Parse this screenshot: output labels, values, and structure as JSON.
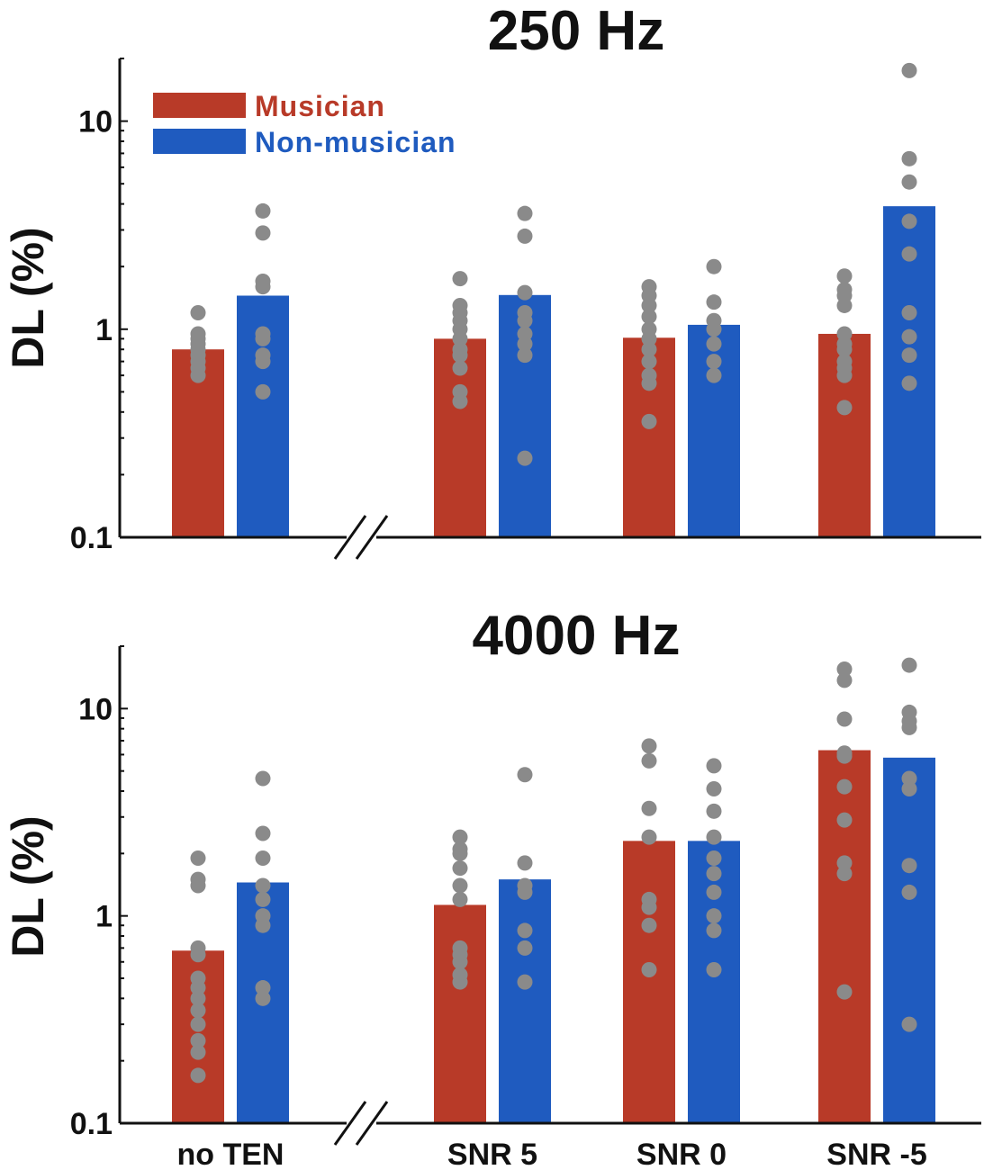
{
  "chart_data": [
    {
      "type": "bar",
      "title": "250 Hz",
      "ylabel": "DL (%)",
      "xlabel": "",
      "yscale": "log",
      "ylim": [
        0.1,
        20
      ],
      "yticks": [
        0.1,
        1,
        10
      ],
      "ytick_labels": [
        "0.1",
        "1",
        "10"
      ],
      "categories": [
        "no TEN",
        "SNR 5",
        "SNR 0",
        "SNR -5"
      ],
      "show_category_labels": false,
      "axis_break_after": "no TEN",
      "legend": {
        "placement": "top-left",
        "entries": [
          "Musician",
          "Non-musician"
        ]
      },
      "series": [
        {
          "name": "Musician",
          "color": "#b83a28",
          "values": [
            0.8,
            0.9,
            0.91,
            0.95
          ],
          "points": [
            [
              0.6,
              0.65,
              0.7,
              0.75,
              0.8,
              0.85,
              0.9,
              0.95,
              1.2
            ],
            [
              0.45,
              0.5,
              0.65,
              0.75,
              0.8,
              0.9,
              1.0,
              1.1,
              1.2,
              1.3,
              1.75
            ],
            [
              0.36,
              0.55,
              0.6,
              0.7,
              0.8,
              0.9,
              1.0,
              1.15,
              1.3,
              1.45,
              1.6
            ],
            [
              0.42,
              0.6,
              0.65,
              0.7,
              0.8,
              0.85,
              0.95,
              1.3,
              1.45,
              1.55,
              1.8
            ]
          ]
        },
        {
          "name": "Non-musician",
          "color": "#1f5bbf",
          "values": [
            1.45,
            1.46,
            1.05,
            3.9
          ],
          "points": [
            [
              0.5,
              0.7,
              0.75,
              0.9,
              0.95,
              1.6,
              1.7,
              2.9,
              3.7
            ],
            [
              0.24,
              0.75,
              0.85,
              0.95,
              1.1,
              1.2,
              1.5,
              2.8,
              3.6
            ],
            [
              0.6,
              0.7,
              0.85,
              1.0,
              1.1,
              1.35,
              2.0
            ],
            [
              0.55,
              0.75,
              0.92,
              1.2,
              2.3,
              3.3,
              5.1,
              6.6,
              17.5
            ]
          ]
        }
      ]
    },
    {
      "type": "bar",
      "title": "4000 Hz",
      "ylabel": "DL (%)",
      "xlabel": "",
      "yscale": "log",
      "ylim": [
        0.1,
        20
      ],
      "yticks": [
        0.1,
        1,
        10
      ],
      "ytick_labels": [
        "0.1",
        "1",
        "10"
      ],
      "categories": [
        "no TEN",
        "SNR 5",
        "SNR 0",
        "SNR -5"
      ],
      "show_category_labels": true,
      "axis_break_after": "no TEN",
      "series": [
        {
          "name": "Musician",
          "color": "#b83a28",
          "values": [
            0.68,
            1.13,
            2.3,
            6.3
          ],
          "points": [
            [
              0.17,
              0.22,
              0.25,
              0.3,
              0.35,
              0.4,
              0.45,
              0.5,
              0.65,
              0.7,
              1.4,
              1.5,
              1.9
            ],
            [
              0.48,
              0.52,
              0.6,
              0.65,
              0.7,
              1.2,
              1.4,
              1.7,
              2.0,
              2.1,
              2.4
            ],
            [
              0.55,
              0.9,
              1.1,
              1.2,
              2.4,
              3.3,
              5.6,
              6.6
            ],
            [
              0.43,
              1.6,
              1.8,
              2.9,
              4.2,
              5.9,
              6.1,
              8.9,
              13.7,
              15.5
            ]
          ]
        },
        {
          "name": "Non-musician",
          "color": "#1f5bbf",
          "values": [
            1.45,
            1.5,
            2.3,
            5.8
          ],
          "points": [
            [
              0.4,
              0.45,
              0.9,
              1.0,
              1.2,
              1.4,
              1.9,
              2.5,
              4.6
            ],
            [
              0.48,
              0.7,
              0.85,
              1.3,
              1.4,
              1.8,
              4.8
            ],
            [
              0.55,
              0.85,
              1.0,
              1.3,
              1.6,
              1.9,
              2.4,
              3.2,
              4.1,
              5.3
            ],
            [
              0.3,
              1.3,
              1.75,
              4.1,
              4.6,
              8.1,
              8.7,
              9.6,
              16.2
            ]
          ]
        }
      ]
    }
  ]
}
